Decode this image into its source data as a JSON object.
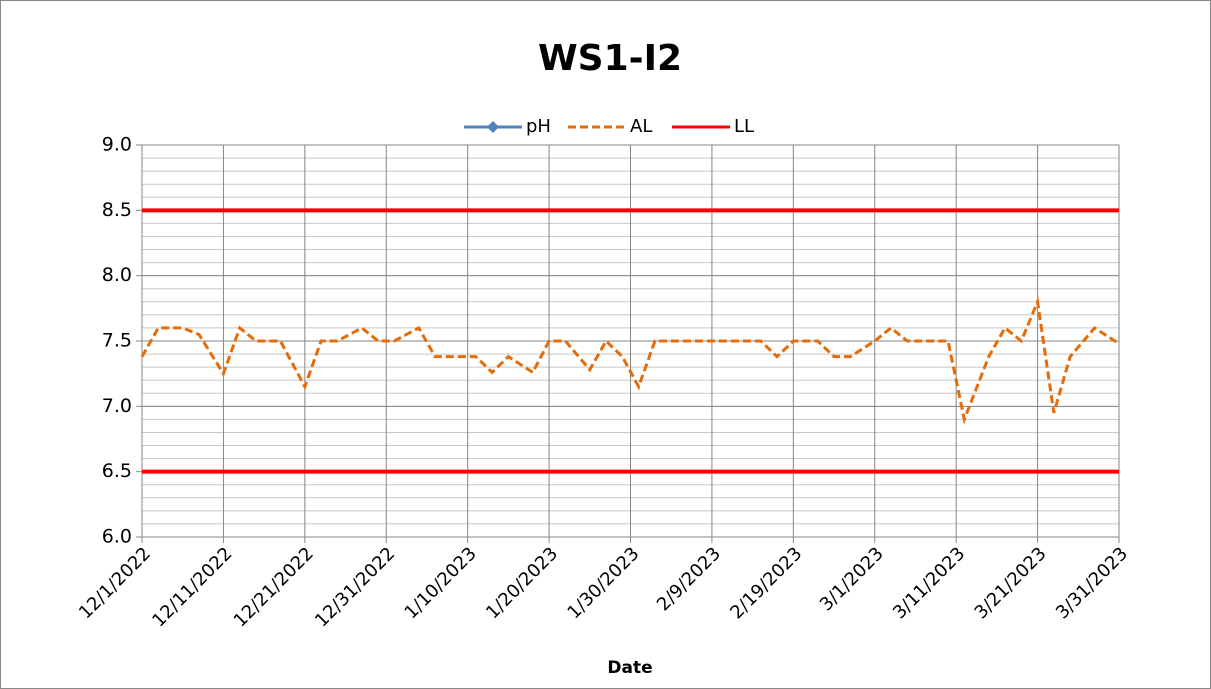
{
  "chart_data": {
    "type": "line",
    "title": "WS1-I2",
    "x_label": "Date",
    "x": [
      "12/1/2022",
      "12/3/2022",
      "12/6/2022",
      "12/8/2022",
      "12/11/2022",
      "12/13/2022",
      "12/15/2022",
      "12/18/2022",
      "12/21/2022",
      "12/23/2022",
      "12/25/2022",
      "12/28/2022",
      "12/30/2022",
      "1/1/2023",
      "1/4/2023",
      "1/6/2023",
      "1/8/2023",
      "1/11/2023",
      "1/13/2023",
      "1/15/2023",
      "1/18/2023",
      "1/20/2023",
      "1/22/2023",
      "1/25/2023",
      "1/27/2023",
      "1/29/2023",
      "1/31/2023",
      "2/2/2023",
      "2/5/2023",
      "2/8/2023",
      "2/10/2023",
      "2/12/2023",
      "2/15/2023",
      "2/17/2023",
      "2/19/2023",
      "2/22/2023",
      "2/24/2023",
      "2/26/2023",
      "3/1/2023",
      "3/3/2023",
      "3/5/2023",
      "3/8/2023",
      "3/10/2023",
      "3/12/2023",
      "3/15/2023",
      "3/17/2023",
      "3/19/2023",
      "3/21/2023",
      "3/23/2023",
      "3/25/2023",
      "3/28/2023",
      "3/31/2023"
    ],
    "series": [
      {
        "name": "pH",
        "color": "#4f81bd",
        "marker": "diamond",
        "values": [
          null,
          null,
          null,
          null,
          null,
          null,
          null,
          null,
          null,
          null,
          null,
          null,
          null,
          null,
          null,
          null,
          null,
          null,
          null,
          null,
          null,
          null,
          null,
          null,
          null,
          null,
          null,
          null,
          null,
          null,
          null,
          null,
          null,
          null,
          null,
          null,
          null,
          null,
          null,
          null,
          null,
          null,
          null,
          null,
          null,
          null,
          null,
          null,
          null,
          null,
          null,
          null
        ]
      },
      {
        "name": "AL",
        "color": "#e46c0a",
        "dash": true,
        "values": [
          7.38,
          7.6,
          7.6,
          7.55,
          7.25,
          7.6,
          7.5,
          7.5,
          7.15,
          7.5,
          7.5,
          7.6,
          7.5,
          7.5,
          7.6,
          7.38,
          7.38,
          7.38,
          7.26,
          7.38,
          7.26,
          7.5,
          7.5,
          7.28,
          7.5,
          7.38,
          7.15,
          7.5,
          7.5,
          7.5,
          7.5,
          7.5,
          7.5,
          7.38,
          7.5,
          7.5,
          7.38,
          7.38,
          7.5,
          7.6,
          7.5,
          7.5,
          7.5,
          6.9,
          7.38,
          7.6,
          7.5,
          7.8,
          6.95,
          7.38,
          7.6,
          7.48
        ]
      },
      {
        "name": "LL",
        "color": "#ff0000",
        "levels": [
          8.5,
          6.5
        ]
      }
    ],
    "xlim": [
      "12/1/2022",
      "3/31/2023"
    ],
    "xticks": [
      "12/1/2022",
      "12/11/2022",
      "12/21/2022",
      "12/31/2022",
      "1/10/2023",
      "1/20/2023",
      "1/30/2023",
      "2/9/2023",
      "2/19/2023",
      "3/1/2023",
      "3/11/2023",
      "3/21/2023",
      "3/31/2023"
    ],
    "ylim": [
      6,
      9
    ],
    "yticks": [
      {
        "value": 6,
        "label": "6.0"
      },
      {
        "value": 6.5,
        "label": "6.5"
      },
      {
        "value": 7,
        "label": "7.0"
      },
      {
        "value": 7.5,
        "label": "7.5"
      },
      {
        "value": 8,
        "label": "8.0"
      },
      {
        "value": 8.5,
        "label": "8.5"
      },
      {
        "value": 9,
        "label": "9.0"
      }
    ],
    "grid": true,
    "minor_grid_step": 0.1,
    "legend": "top"
  }
}
